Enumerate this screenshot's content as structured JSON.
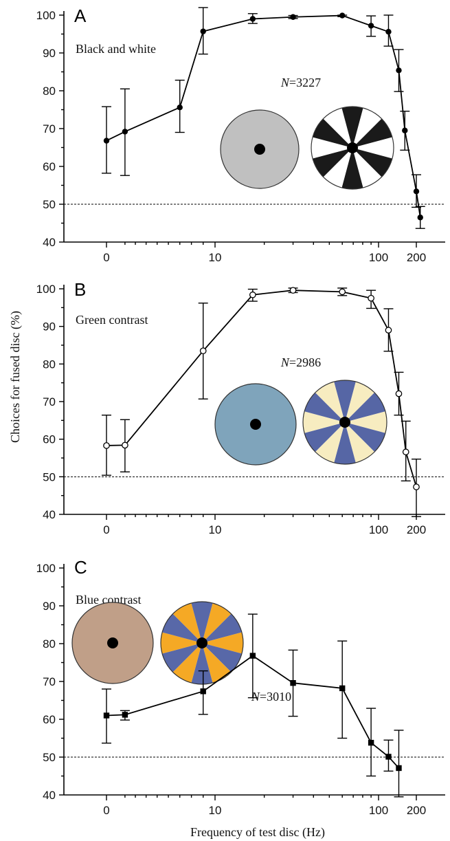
{
  "ylabel": "Choices for fused disc (%)",
  "xlabel": "Frequency of test disc (Hz)",
  "chart_data": [
    {
      "type": "line",
      "panel": "A",
      "label": "Black and white",
      "n_label": "N=3227",
      "n_italic": "N",
      "n_value": "=3227",
      "marker": "filled-circle",
      "x_ticks": [
        "0",
        "10",
        "100",
        "200"
      ],
      "y_ticks": [
        "40",
        "50",
        "60",
        "70",
        "80",
        "90",
        "100"
      ],
      "ylim": [
        40,
        100
      ],
      "reference_line": 50,
      "legend_discs": {
        "plain": {
          "fill": "#c0c0c0"
        },
        "patterned": {
          "fill_a": "#ffffff",
          "fill_b": "#1a1a1a"
        }
      },
      "points": [
        {
          "x": 0,
          "y": 66.8,
          "err": [
            58.2,
            75.8
          ]
        },
        {
          "x": 2,
          "y": 69.2,
          "err": [
            57.6,
            80.5
          ]
        },
        {
          "x": 7,
          "y": 75.6,
          "err": [
            69.0,
            82.8
          ]
        },
        {
          "x": 9,
          "y": 95.7,
          "err": [
            89.7,
            102.0
          ]
        },
        {
          "x": 17,
          "y": 99.0,
          "err": [
            97.8,
            100.4
          ]
        },
        {
          "x": 30,
          "y": 99.5,
          "err": [
            99.1,
            99.9
          ]
        },
        {
          "x": 60,
          "y": 99.9,
          "err": [
            99.6,
            100.0
          ]
        },
        {
          "x": 90,
          "y": 97.2,
          "err": [
            94.4,
            99.8
          ]
        },
        {
          "x": 120,
          "y": 95.6,
          "err": [
            91.8,
            100.0
          ]
        },
        {
          "x": 145,
          "y": 85.4,
          "err": [
            79.8,
            90.9
          ]
        },
        {
          "x": 162,
          "y": 69.5,
          "err": [
            64.3,
            74.6
          ]
        },
        {
          "x": 200,
          "y": 53.4,
          "err": [
            49.2,
            57.8
          ]
        },
        {
          "x": 215,
          "y": 46.5,
          "err": [
            43.6,
            49.4
          ]
        }
      ]
    },
    {
      "type": "line",
      "panel": "B",
      "label": "Green contrast",
      "n_label": "N=2986",
      "n_italic": "N",
      "n_value": "=2986",
      "marker": "open-circle",
      "x_ticks": [
        "0",
        "10",
        "100",
        "200"
      ],
      "y_ticks": [
        "40",
        "50",
        "60",
        "70",
        "80",
        "90",
        "100"
      ],
      "ylim": [
        40,
        100
      ],
      "reference_line": 50,
      "legend_discs": {
        "plain": {
          "fill": "#7fa4bb"
        },
        "patterned": {
          "fill_a": "#f7ecc0",
          "fill_b": "#5666a5"
        }
      },
      "points": [
        {
          "x": 0,
          "y": 58.3,
          "err": [
            50.4,
            66.4
          ]
        },
        {
          "x": 2,
          "y": 58.4,
          "err": [
            51.3,
            65.2
          ]
        },
        {
          "x": 9,
          "y": 83.5,
          "err": [
            70.7,
            96.2
          ]
        },
        {
          "x": 17,
          "y": 98.4,
          "err": [
            96.7,
            99.9
          ]
        },
        {
          "x": 30,
          "y": 99.6,
          "err": [
            99.0,
            100.2
          ]
        },
        {
          "x": 60,
          "y": 99.2,
          "err": [
            98.2,
            100.2
          ]
        },
        {
          "x": 90,
          "y": 97.5,
          "err": [
            94.8,
            99.6
          ]
        },
        {
          "x": 120,
          "y": 89.0,
          "err": [
            83.4,
            94.7
          ]
        },
        {
          "x": 145,
          "y": 72.1,
          "err": [
            66.4,
            77.8
          ]
        },
        {
          "x": 165,
          "y": 56.6,
          "err": [
            48.9,
            64.8
          ]
        },
        {
          "x": 200,
          "y": 47.3,
          "err": [
            39.4,
            54.7
          ]
        }
      ]
    },
    {
      "type": "line",
      "panel": "C",
      "label": "Blue contrast",
      "n_label": "N=3010",
      "n_italic": "N",
      "n_value": "=3010",
      "marker": "filled-square",
      "x_ticks": [
        "0",
        "10",
        "100",
        "200"
      ],
      "y_ticks": [
        "40",
        "50",
        "60",
        "70",
        "80",
        "90",
        "100"
      ],
      "ylim": [
        40,
        100
      ],
      "reference_line": 50,
      "legend_discs": {
        "plain": {
          "fill": "#c09f88"
        },
        "patterned": {
          "fill_a": "#f5a925",
          "fill_b": "#5868a8"
        }
      },
      "points": [
        {
          "x": 0,
          "y": 61.0,
          "err": [
            53.7,
            68.0
          ]
        },
        {
          "x": 2,
          "y": 61.2,
          "err": [
            59.8,
            62.3
          ]
        },
        {
          "x": 9,
          "y": 67.4,
          "err": [
            61.3,
            72.8
          ]
        },
        {
          "x": 17,
          "y": 76.8,
          "err": [
            65.7,
            87.8
          ]
        },
        {
          "x": 30,
          "y": 69.6,
          "err": [
            60.8,
            78.3
          ]
        },
        {
          "x": 60,
          "y": 68.2,
          "err": [
            55.0,
            80.7
          ]
        },
        {
          "x": 90,
          "y": 53.8,
          "err": [
            45.0,
            62.9
          ]
        },
        {
          "x": 120,
          "y": 50.1,
          "err": [
            46.3,
            54.5
          ]
        },
        {
          "x": 145,
          "y": 47.1,
          "err": [
            39.5,
            57.1
          ]
        }
      ]
    }
  ]
}
